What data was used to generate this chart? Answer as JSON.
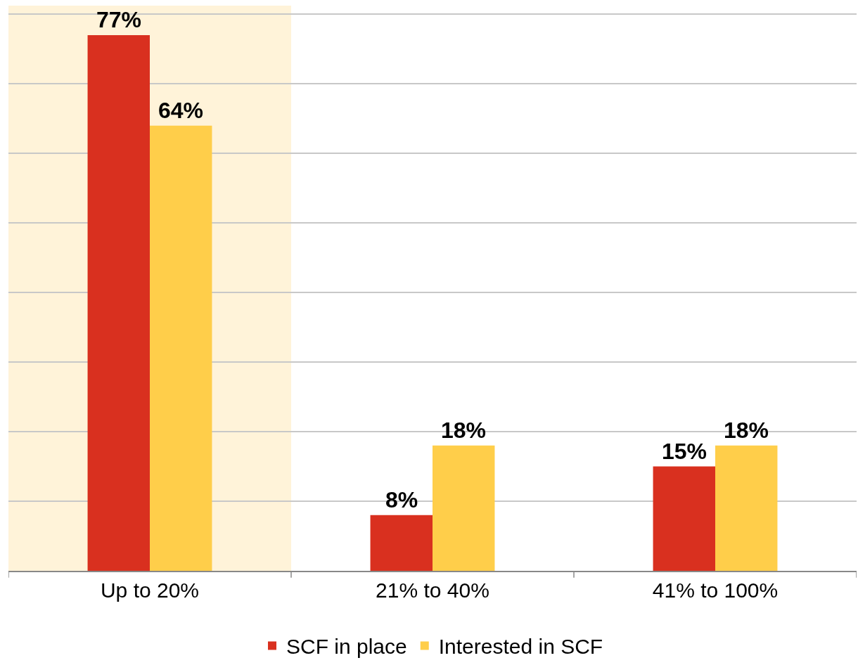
{
  "chart_data": {
    "type": "bar",
    "categories": [
      "Up to 20%",
      "21% to 40%",
      "41% to 100%"
    ],
    "series": [
      {
        "name": "SCF in place",
        "color": "#d9301f",
        "values": [
          77,
          8,
          15
        ],
        "value_labels": [
          "77%",
          "8%",
          "15%"
        ]
      },
      {
        "name": "Interested in SCF",
        "color": "#ffce4a",
        "values": [
          64,
          18,
          18
        ],
        "value_labels": [
          "64%",
          "18%",
          "18%"
        ]
      }
    ],
    "tick_labels": "x",
    "grid": "y",
    "legend": "bottom",
    "bands": [
      {
        "axis": "x",
        "from": "Up to 20%",
        "to": "Up to 20%",
        "color": "#fff3d9"
      }
    ]
  }
}
